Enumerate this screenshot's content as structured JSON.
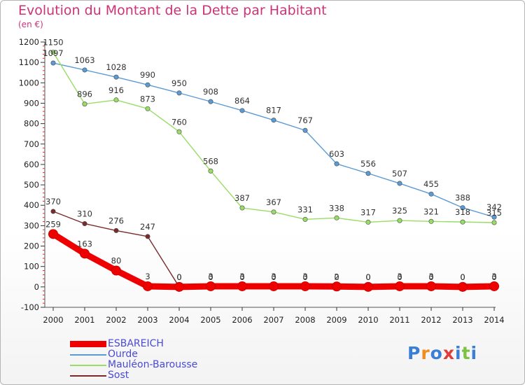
{
  "title": "Evolution du Montant de la Dette par Habitant",
  "unit_label": "(en €)",
  "logo_text": "Proxiti",
  "chart_data": {
    "type": "line",
    "title": "Evolution du Montant de la Dette par Habitant",
    "ylabel": "(en €)",
    "xlabel": "",
    "x": [
      "2000",
      "2001",
      "2002",
      "2003",
      "2004",
      "2005",
      "2006",
      "2007",
      "2008",
      "2009",
      "2010",
      "2011",
      "2012",
      "2013",
      "2014"
    ],
    "ylim": [
      -100,
      1200
    ],
    "yticks": [
      -100,
      0,
      100,
      200,
      300,
      400,
      500,
      600,
      700,
      800,
      900,
      1000,
      1100,
      1200
    ],
    "grid": false,
    "legend_position": "bottom-left",
    "series": [
      {
        "name": "ESBAREICH",
        "color": "#ee0000",
        "values": [
          259,
          163,
          80,
          3,
          0,
          3,
          3,
          3,
          3,
          2,
          0,
          3,
          3,
          0,
          3
        ],
        "labels": [
          "259",
          "163",
          "80",
          "3",
          "0",
          "3",
          "3",
          "3",
          "3",
          "2",
          "0",
          "3",
          "3",
          "0",
          "3"
        ]
      },
      {
        "name": "Ourde",
        "color": "#5b9bd5",
        "values": [
          1097,
          1063,
          1028,
          990,
          950,
          908,
          864,
          817,
          767,
          603,
          556,
          507,
          455,
          388,
          342
        ],
        "labels": [
          "1097",
          "1063",
          "1028",
          "990",
          "950",
          "908",
          "864",
          "817",
          "767",
          "603",
          "556",
          "507",
          "455",
          "388",
          "342"
        ]
      },
      {
        "name": "Mauléon-Barousse",
        "color": "#99dd66",
        "values": [
          1150,
          896,
          916,
          873,
          760,
          568,
          387,
          367,
          331,
          338,
          317,
          325,
          321,
          318,
          315
        ],
        "labels": [
          "1150",
          "896",
          "916",
          "873",
          "760",
          "568",
          "387",
          "367",
          "331",
          "338",
          "317",
          "325",
          "321",
          "318",
          "315"
        ]
      },
      {
        "name": "Sost",
        "color": "#7a2a2a",
        "values": [
          370,
          310,
          276,
          247,
          0,
          0,
          0,
          0,
          0,
          0,
          0,
          0,
          0,
          0,
          0
        ],
        "labels": [
          "370",
          "310",
          "276",
          "247",
          "0",
          "0",
          "0",
          "0",
          "0",
          "0",
          "0",
          "0",
          "0",
          "0",
          "0"
        ]
      }
    ]
  }
}
